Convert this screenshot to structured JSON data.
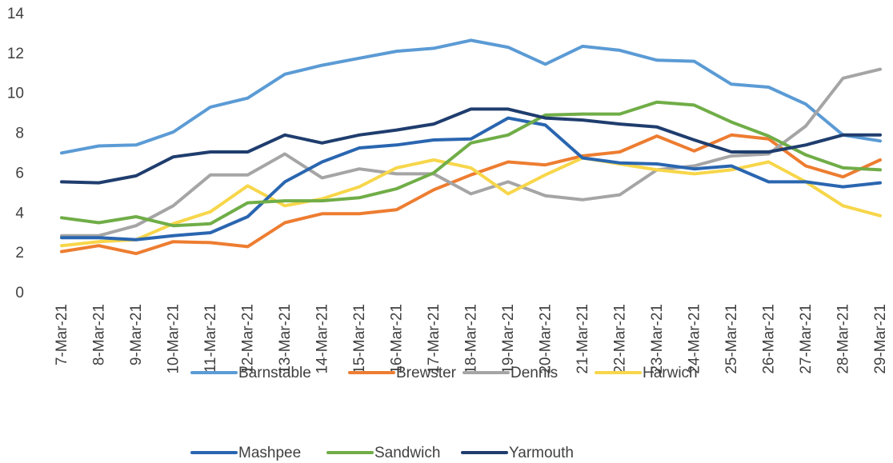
{
  "chart_data": {
    "type": "line",
    "categories": [
      "7-Mar-21",
      "8-Mar-21",
      "9-Mar-21",
      "10-Mar-21",
      "11-Mar-21",
      "12-Mar-21",
      "13-Mar-21",
      "14-Mar-21",
      "15-Mar-21",
      "16-Mar-21",
      "17-Mar-21",
      "18-Mar-21",
      "19-Mar-21",
      "20-Mar-21",
      "21-Mar-21",
      "22-Mar-21",
      "23-Mar-21",
      "24-Mar-21",
      "25-Mar-21",
      "26-Mar-21",
      "27-Mar-21",
      "28-Mar-21",
      "29-Mar-21"
    ],
    "series": [
      {
        "name": "Barnstable",
        "color": "#5b9bd5",
        "values": [
          7.05,
          7.4,
          7.45,
          8.1,
          9.35,
          9.8,
          11,
          11.45,
          11.8,
          12.15,
          12.3,
          12.7,
          12.35,
          11.5,
          12.4,
          12.2,
          11.7,
          11.65,
          10.5,
          10.35,
          9.5,
          7.95,
          7.65
        ]
      },
      {
        "name": "Brewster",
        "color": "#ed7d31",
        "values": [
          2.1,
          2.4,
          2.0,
          2.6,
          2.55,
          2.35,
          3.55,
          4.0,
          4.0,
          4.2,
          5.2,
          5.95,
          6.6,
          6.45,
          6.9,
          7.1,
          7.9,
          7.15,
          7.95,
          7.75,
          6.4,
          5.85,
          6.7
        ]
      },
      {
        "name": "Dennis",
        "color": "#a5a5a5",
        "values": [
          2.9,
          2.9,
          3.4,
          4.4,
          5.95,
          5.95,
          7.0,
          5.8,
          6.25,
          6.0,
          6.0,
          5.0,
          5.6,
          4.9,
          4.7,
          4.95,
          6.2,
          6.4,
          6.9,
          7.0,
          8.4,
          10.8,
          11.25
        ]
      },
      {
        "name": "Harwich",
        "color": "#f7d64a",
        "values": [
          2.4,
          2.6,
          2.7,
          3.5,
          4.1,
          5.4,
          4.4,
          4.75,
          5.35,
          6.3,
          6.7,
          6.3,
          5.0,
          5.95,
          6.8,
          6.5,
          6.2,
          6.0,
          6.2,
          6.6,
          5.6,
          4.4,
          3.9
        ]
      },
      {
        "name": "Mashpee",
        "color": "#2a66b0",
        "values": [
          2.8,
          2.8,
          2.7,
          2.9,
          3.05,
          3.85,
          5.6,
          6.6,
          7.3,
          7.45,
          7.7,
          7.75,
          8.8,
          8.45,
          6.8,
          6.55,
          6.5,
          6.25,
          6.4,
          5.6,
          5.6,
          5.35,
          5.55
        ]
      },
      {
        "name": "Sandwich",
        "color": "#70ad47",
        "values": [
          3.8,
          3.55,
          3.85,
          3.4,
          3.5,
          4.55,
          4.65,
          4.65,
          4.8,
          5.25,
          6.05,
          7.55,
          7.95,
          8.95,
          9.0,
          9.0,
          9.6,
          9.45,
          8.6,
          7.9,
          6.95,
          6.3,
          6.2
        ]
      },
      {
        "name": "Yarmouth",
        "color": "#1f3d6e",
        "values": [
          5.6,
          5.55,
          5.9,
          6.85,
          7.1,
          7.1,
          7.95,
          7.55,
          7.95,
          8.2,
          8.5,
          9.25,
          9.25,
          8.8,
          8.7,
          8.5,
          8.35,
          7.7,
          7.1,
          7.1,
          7.45,
          7.95,
          7.95
        ]
      }
    ],
    "ylim": [
      0,
      14
    ],
    "yticks": [
      0,
      2,
      4,
      6,
      8,
      10,
      12,
      14
    ],
    "grid": false,
    "legend": "bottom"
  }
}
